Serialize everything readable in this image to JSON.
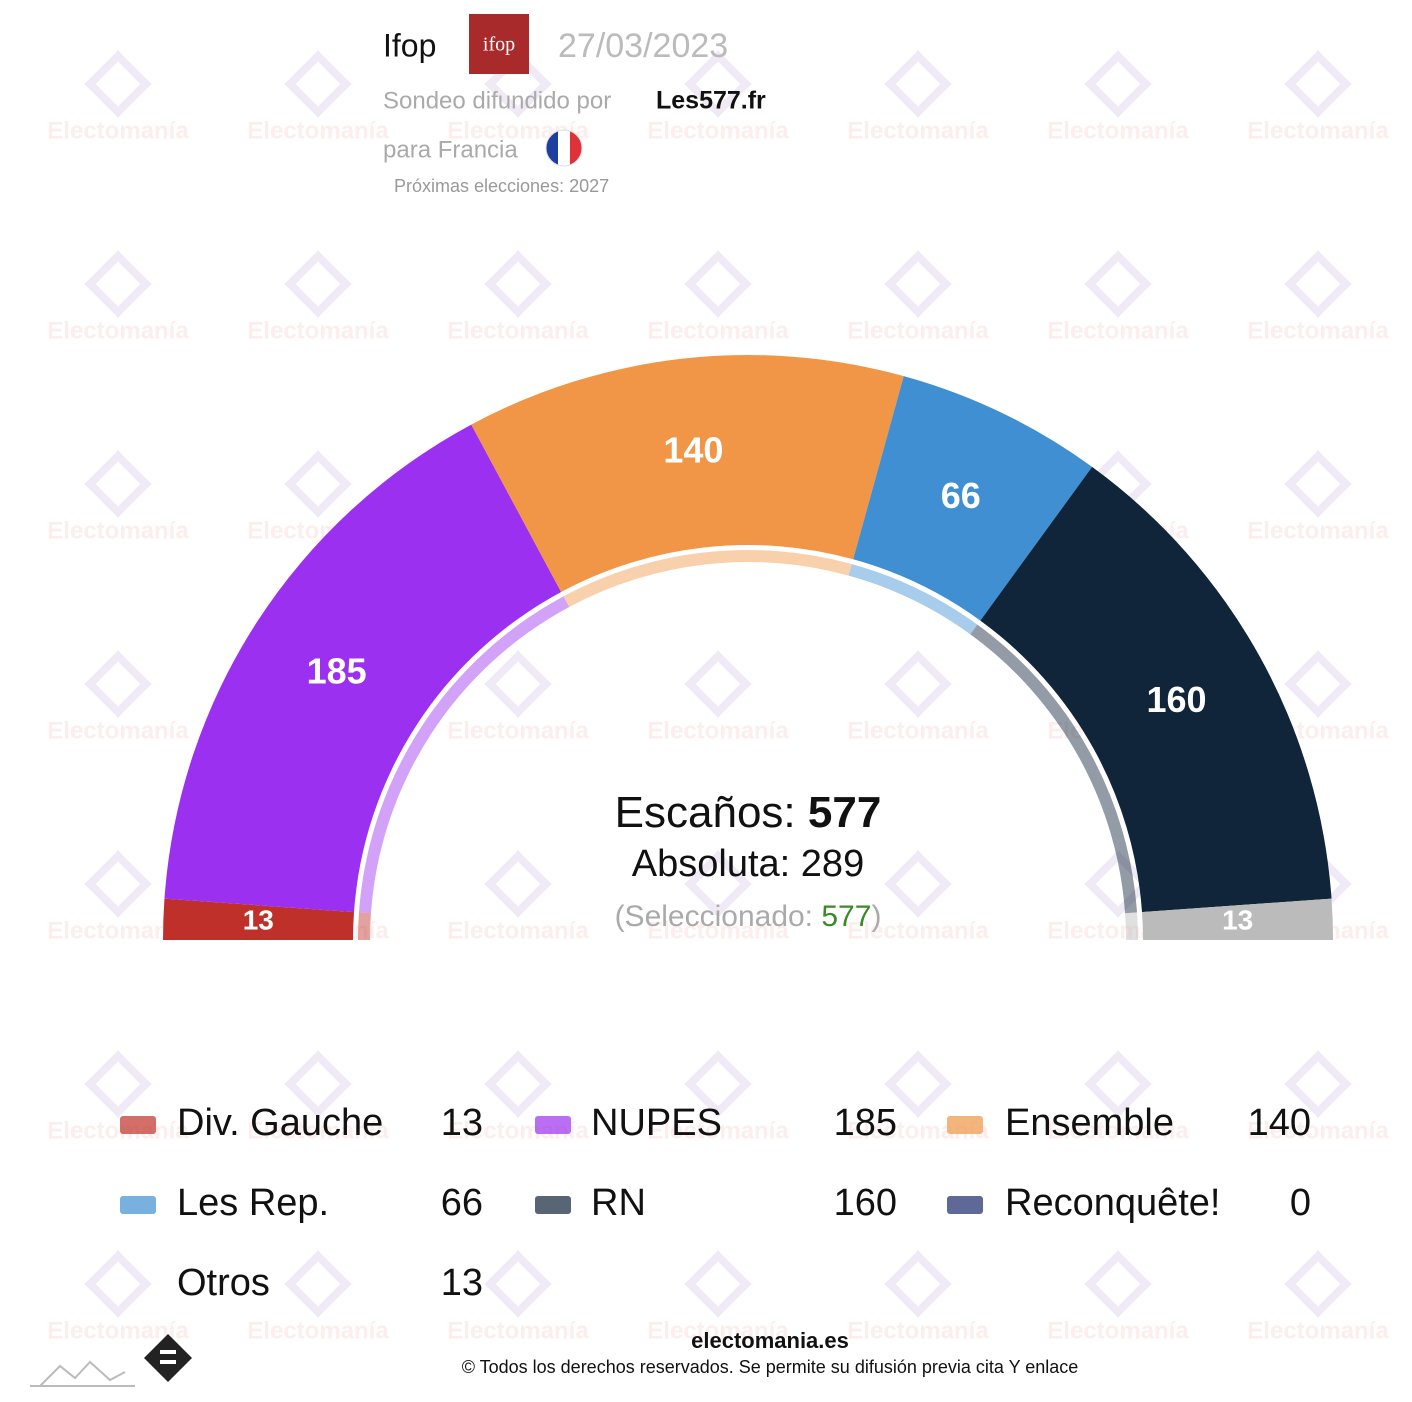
{
  "header": {
    "pollster": "Ifop",
    "pollster_logo": "ifop",
    "date": "27/03/2023",
    "published_by_label": "Sondeo difundido por",
    "published_by": "Les577.fr",
    "country_label": "para Francia",
    "next_elections": "Próximas elecciones: 2027"
  },
  "watermark": "Electomanía",
  "chart_data": {
    "type": "parliament",
    "series": [
      {
        "name": "Div. Gauche",
        "color": "#c0302a",
        "value": 13
      },
      {
        "name": "NUPES",
        "color": "#9b30f0",
        "value": 185
      },
      {
        "name": "Ensemble",
        "color": "#f09646",
        "value": 140
      },
      {
        "name": "Les Rep.",
        "color": "#3f8fd2",
        "value": 66
      },
      {
        "name": "RN",
        "color": "#10243a",
        "value": 160
      },
      {
        "name": "Reconquête!",
        "color": "#1a2a6c",
        "value": 0
      },
      {
        "name": "Otros",
        "color": "#bbbbbb",
        "value": 13
      }
    ],
    "seats_label": "Escaños:",
    "seats_total": 577,
    "majority_label": "Absoluta:",
    "majority": 289,
    "selected_label": "(Seleccionado:",
    "selected": 577,
    "selected_close": ")"
  },
  "footer": {
    "site": "electomania.es",
    "copyright": "© Todos los derechos reservados. Se permite su difusión previa cita Y enlace"
  }
}
